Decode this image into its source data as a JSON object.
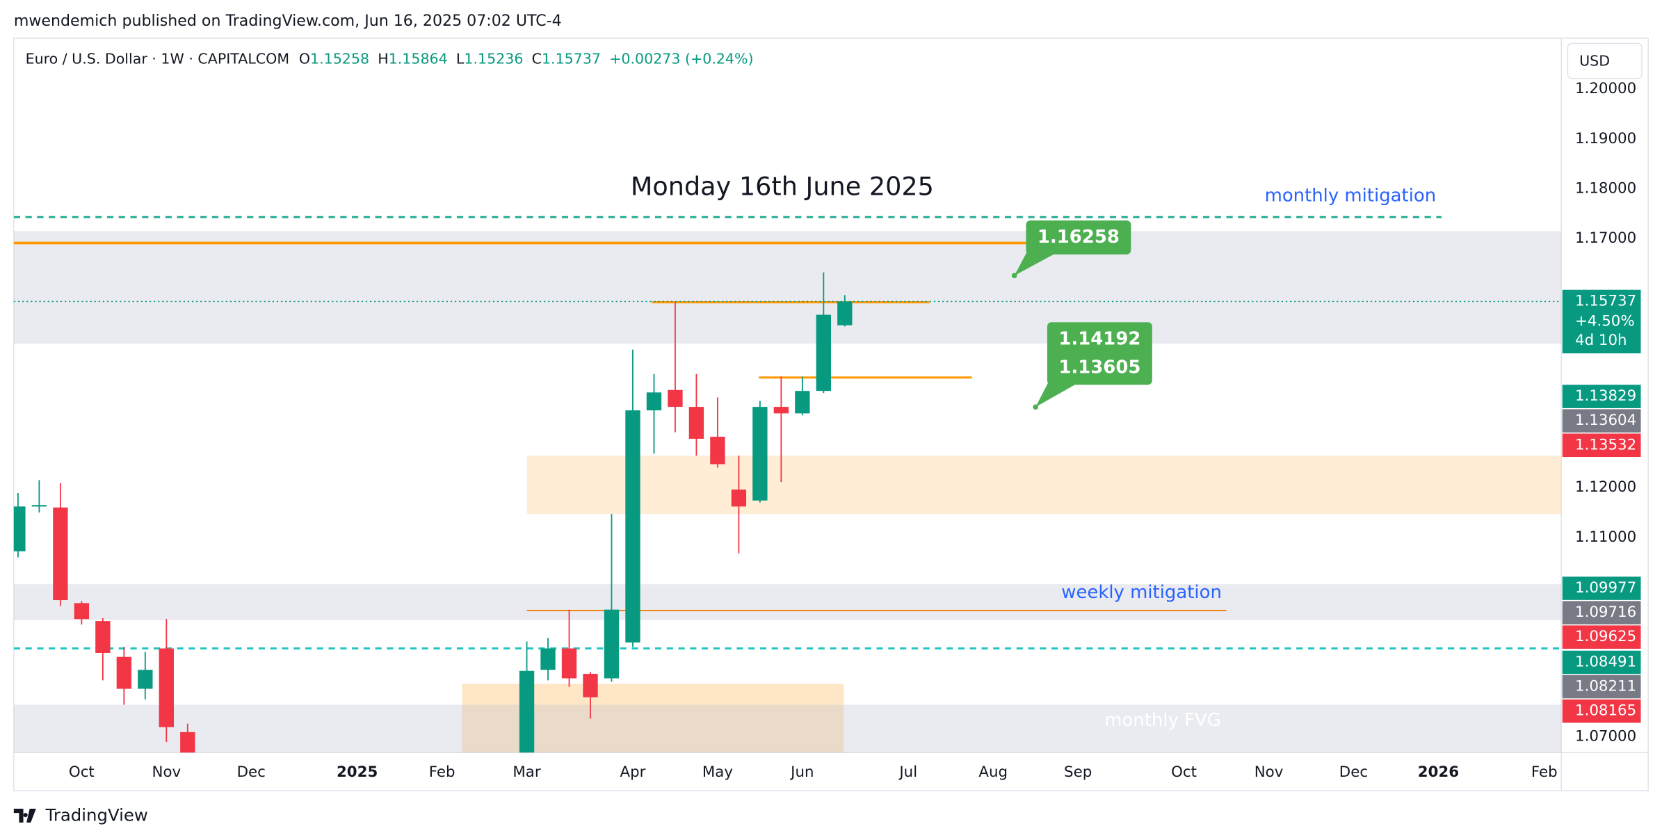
{
  "header": {
    "publisher": "mwendemich published on TradingView.com, Jun 16, 2025 07:02 UTC-4",
    "footer": "TradingView",
    "currency": "USD"
  },
  "chart_data": {
    "type": "candlestick",
    "title": "Monday 16th June 2025",
    "symbol": "Euro / U.S. Dollar · 1W · CAPITALCOM",
    "ohlc_labels": [
      "O",
      "H",
      "L",
      "C"
    ],
    "change": "+0.00273 (+0.24%)",
    "current_change": "+4.50%",
    "countdown": "4d 10h",
    "up_color": "#089981",
    "down_color": "#f23645",
    "categories": [
      null,
      null,
      null,
      "Oct",
      null,
      null,
      null,
      "Nov",
      null,
      null,
      null,
      "Dec",
      null,
      null,
      null,
      null,
      "2025",
      null,
      null,
      null,
      "Feb",
      null,
      null,
      null,
      "Mar",
      null,
      null,
      null,
      null,
      "Apr",
      null,
      null,
      null,
      "May",
      null,
      null,
      null,
      "Jun",
      null,
      null,
      null,
      null,
      "Jul",
      null,
      null,
      null,
      "Aug",
      null,
      null,
      null,
      "Sep",
      null,
      null,
      null,
      null,
      "Oct",
      null,
      null,
      null,
      "Nov",
      null,
      null,
      null,
      "Dec",
      null,
      null,
      null,
      "2026",
      null,
      null,
      null,
      null,
      "Feb"
    ],
    "open": [
      1.1072,
      1.1162,
      1.116,
      1.0968,
      1.0932,
      1.086,
      1.0796,
      1.0877,
      1.0709,
      null,
      null,
      null,
      null,
      null,
      null,
      null,
      null,
      null,
      null,
      null,
      null,
      null,
      null,
      null,
      1.066,
      1.0834,
      1.0877,
      1.0826,
      1.0817,
      1.0889,
      1.1355,
      1.1396,
      1.1362,
      1.1302,
      1.1196,
      1.1174,
      1.1362,
      1.1349,
      1.1394,
      1.15258,
      null,
      null,
      null,
      null,
      null,
      null,
      null,
      null,
      null,
      null,
      null,
      null,
      null,
      null,
      null,
      null,
      null,
      null,
      null,
      null,
      null,
      null,
      null,
      null,
      null,
      null,
      null,
      null,
      null,
      null,
      null,
      null,
      null
    ],
    "high": [
      1.1189,
      1.1215,
      1.1209,
      1.0972,
      1.0938,
      1.088,
      1.087,
      1.0936,
      1.0726,
      null,
      null,
      null,
      null,
      null,
      null,
      null,
      null,
      null,
      null,
      null,
      null,
      null,
      null,
      null,
      1.0891,
      1.0898,
      1.0955,
      1.083,
      1.1147,
      1.1477,
      1.1428,
      1.1572,
      1.1428,
      1.1381,
      1.1264,
      1.1374,
      1.1423,
      1.1423,
      1.1632,
      1.15864,
      null,
      null,
      null,
      null,
      null,
      null,
      null,
      null,
      null,
      null,
      null,
      null,
      null,
      null,
      null,
      null,
      null,
      null,
      null,
      null,
      null,
      null,
      null,
      null,
      null,
      null,
      null,
      null,
      null,
      null,
      null,
      null,
      null
    ],
    "low": [
      1.106,
      1.115,
      1.0962,
      1.0925,
      1.0813,
      1.0764,
      1.0775,
      1.0689,
      1.064,
      null,
      null,
      null,
      null,
      null,
      null,
      null,
      null,
      null,
      null,
      null,
      null,
      null,
      null,
      null,
      1.064,
      1.0813,
      1.08,
      1.0736,
      1.081,
      1.088,
      1.1268,
      1.1311,
      1.1264,
      1.124,
      1.1068,
      1.117,
      1.1211,
      1.1345,
      1.139,
      1.15236,
      null,
      null,
      null,
      null,
      null,
      null,
      null,
      null,
      null,
      null,
      null,
      null,
      null,
      null,
      null,
      null,
      null,
      null,
      null,
      null,
      null,
      null,
      null,
      null,
      null,
      null,
      null,
      null,
      null,
      null,
      null,
      null,
      null
    ],
    "close": [
      1.1162,
      1.1165,
      1.0974,
      1.0936,
      1.0868,
      1.0796,
      1.0834,
      1.0719,
      1.066,
      null,
      null,
      null,
      null,
      null,
      null,
      null,
      null,
      null,
      null,
      null,
      null,
      null,
      null,
      null,
      1.0832,
      1.0877,
      1.0817,
      1.0779,
      1.0955,
      1.1355,
      1.1391,
      1.1362,
      1.1298,
      1.1247,
      1.1162,
      1.1362,
      1.1349,
      1.1394,
      1.1547,
      1.15737,
      null,
      null,
      null,
      null,
      null,
      null,
      null,
      null,
      null,
      null,
      null,
      null,
      null,
      null,
      null,
      null,
      null,
      null,
      null,
      null,
      null,
      null,
      null,
      null,
      null,
      null,
      null,
      null,
      null,
      null,
      null,
      null,
      null
    ],
    "ylim": [
      1.0668,
      1.2098
    ],
    "yticks": [
      {
        "value": 1.2,
        "label": "1.20000"
      },
      {
        "value": 1.19,
        "label": "1.19000"
      },
      {
        "value": 1.18,
        "label": "1.18000"
      },
      {
        "value": 1.17,
        "label": "1.17000"
      },
      {
        "value": 1.12,
        "label": "1.12000"
      },
      {
        "value": 1.11,
        "label": "1.11000"
      },
      {
        "value": 1.07,
        "label": "1.07000"
      }
    ],
    "grid": false,
    "zones": [
      {
        "from": 1.1715,
        "to": 1.1489,
        "color": "rgba(190,195,208,0.33)"
      },
      {
        "from": 1.1264,
        "to": 1.1147,
        "color": "rgba(255,200,130,0.33)"
      },
      {
        "from": 1.1006,
        "to": 1.0934,
        "color": "rgba(190,195,208,0.33)"
      },
      {
        "from": 1.0806,
        "to": 1.066,
        "color": "rgba(255,200,130,0.45)"
      },
      {
        "from": 1.0764,
        "to": 1.066,
        "color": "rgba(190,195,208,0.33)"
      }
    ],
    "levels": [
      {
        "value": 1.1743,
        "color": "#22ab94",
        "dashed": true
      },
      {
        "value": 1.0877,
        "color": "#22c5c5",
        "dashed": true
      },
      {
        "value": 1.1691,
        "color": "#ff9800",
        "dashed": false
      },
      {
        "value": 1.1572,
        "color": "#ff9800",
        "dashed": false
      },
      {
        "value": 1.1421,
        "color": "#ff9800",
        "dashed": false
      },
      {
        "value": 1.0953,
        "color": "#f57c00",
        "dashed": false
      }
    ],
    "annotations": [
      {
        "text": "monthly mitigation",
        "value": 1.1785,
        "color": "#2962ff"
      },
      {
        "text": "weekly mitigation",
        "value": 1.0989,
        "color": "#2962ff"
      },
      {
        "text": "monthly FVG",
        "value": 1.0732,
        "color": "#ffffff"
      }
    ],
    "callouts": [
      {
        "values": [
          1.16258
        ]
      },
      {
        "values": [
          1.14192,
          1.13605
        ]
      }
    ],
    "price_labels": [
      {
        "value": 1.13829,
        "color": "#089981"
      },
      {
        "value": 1.13604,
        "color": "#787b86"
      },
      {
        "value": 1.13532,
        "color": "#f23645"
      },
      {
        "value": 1.09977,
        "color": "#089981"
      },
      {
        "value": 1.09716,
        "color": "#787b86"
      },
      {
        "value": 1.09625,
        "color": "#f23645"
      },
      {
        "value": 1.08491,
        "color": "#089981"
      },
      {
        "value": 1.08211,
        "color": "#787b86"
      },
      {
        "value": 1.08165,
        "color": "#f23645"
      }
    ]
  }
}
